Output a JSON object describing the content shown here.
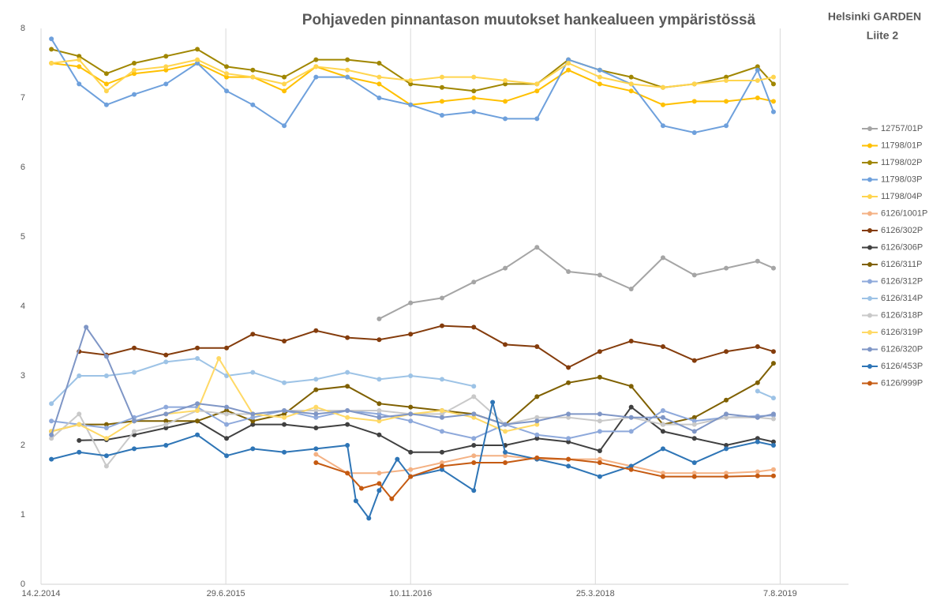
{
  "chart_data": {
    "type": "line",
    "title": "Pohjaveden pinnantason muutokset hankealueen ympäristössä",
    "side_title": "Helsinki GARDEN",
    "side_subtitle": "Liite 2",
    "xlim": [
      "2014-02-14",
      "2020-02-08"
    ],
    "xticks": [
      {
        "value": "2014-02-14",
        "label": "14.2.2014"
      },
      {
        "value": "2015-06-29",
        "label": "29.6.2015"
      },
      {
        "value": "2016-11-10",
        "label": "10.11.2016"
      },
      {
        "value": "2018-03-25",
        "label": "25.3.2018"
      },
      {
        "value": "2019-08-07",
        "label": "7.8.2019"
      }
    ],
    "ylim": [
      0,
      8
    ],
    "yticks": [
      0,
      1,
      2,
      3,
      4,
      5,
      6,
      7,
      8
    ],
    "grid": "x",
    "legend": "right",
    "series": [
      {
        "name": "12757/01P",
        "color": "#a5a5a5",
        "x": [
          "2016-08-17",
          "2016-11-10",
          "2017-02-03",
          "2017-04-30",
          "2017-07-24",
          "2017-10-18",
          "2018-01-11",
          "2018-04-06",
          "2018-06-30",
          "2018-09-24",
          "2018-12-18",
          "2019-03-14",
          "2019-06-07",
          "2019-07-20"
        ],
        "values": [
          3.82,
          4.05,
          4.12,
          4.35,
          4.55,
          4.85,
          4.5,
          4.45,
          4.25,
          4.7,
          4.45,
          4.55,
          4.65,
          4.55
        ]
      },
      {
        "name": "11798/01P",
        "color": "#ffc000",
        "x": [
          "2014-03-14",
          "2014-05-28",
          "2014-08-10",
          "2014-10-24",
          "2015-01-18",
          "2015-04-13",
          "2015-07-01",
          "2015-09-10",
          "2015-12-04",
          "2016-02-28",
          "2016-05-23",
          "2016-08-17",
          "2016-11-10",
          "2017-02-03",
          "2017-04-30",
          "2017-07-24",
          "2017-10-18",
          "2018-01-11",
          "2018-04-06",
          "2018-06-30",
          "2018-09-24",
          "2018-12-18",
          "2019-03-14",
          "2019-06-07",
          "2019-07-20"
        ],
        "values": [
          7.5,
          7.45,
          7.2,
          7.35,
          7.4,
          7.5,
          7.3,
          7.3,
          7.1,
          7.45,
          7.3,
          7.2,
          6.9,
          6.95,
          7.0,
          6.95,
          7.1,
          7.4,
          7.2,
          7.1,
          6.9,
          6.95,
          6.95,
          7.0,
          6.95
        ]
      },
      {
        "name": "11798/02P",
        "color": "#a08600",
        "x": [
          "2014-03-14",
          "2014-05-28",
          "2014-08-10",
          "2014-10-24",
          "2015-01-18",
          "2015-04-13",
          "2015-07-01",
          "2015-09-10",
          "2015-12-04",
          "2016-02-28",
          "2016-05-23",
          "2016-08-17",
          "2016-11-10",
          "2017-02-03",
          "2017-04-30",
          "2017-07-24",
          "2017-10-18",
          "2018-01-11",
          "2018-04-06",
          "2018-06-30",
          "2018-09-24",
          "2018-12-18",
          "2019-03-14",
          "2019-06-07",
          "2019-07-20"
        ],
        "values": [
          7.7,
          7.6,
          7.35,
          7.5,
          7.6,
          7.7,
          7.45,
          7.4,
          7.3,
          7.55,
          7.55,
          7.5,
          7.2,
          7.15,
          7.1,
          7.2,
          7.2,
          7.55,
          7.4,
          7.3,
          7.15,
          7.2,
          7.3,
          7.45,
          7.2
        ]
      },
      {
        "name": "11798/03P",
        "color": "#6ea0dc",
        "x": [
          "2014-03-14",
          "2014-05-28",
          "2014-08-10",
          "2014-10-24",
          "2015-01-18",
          "2015-04-13",
          "2015-07-01",
          "2015-09-10",
          "2015-12-04",
          "2016-02-28",
          "2016-05-23",
          "2016-08-17",
          "2016-11-10",
          "2017-02-03",
          "2017-04-30",
          "2017-07-24",
          "2017-10-18",
          "2018-01-11",
          "2018-04-06",
          "2018-06-30",
          "2018-09-24",
          "2018-12-18",
          "2019-03-14",
          "2019-06-07",
          "2019-07-20"
        ],
        "values": [
          7.85,
          7.2,
          6.9,
          7.05,
          7.2,
          7.5,
          7.1,
          6.9,
          6.6,
          7.3,
          7.3,
          7.0,
          6.9,
          6.75,
          6.8,
          6.7,
          6.7,
          7.55,
          7.4,
          7.2,
          6.6,
          6.5,
          6.6,
          7.4,
          6.8
        ]
      },
      {
        "name": "11798/04P",
        "color": "#ffd54f",
        "x": [
          "2014-03-14",
          "2014-05-28",
          "2014-08-10",
          "2014-10-24",
          "2015-01-18",
          "2015-04-13",
          "2015-07-01",
          "2015-09-10",
          "2015-12-04",
          "2016-02-28",
          "2016-05-23",
          "2016-08-17",
          "2016-11-10",
          "2017-02-03",
          "2017-04-30",
          "2017-07-24",
          "2017-10-18",
          "2018-01-11",
          "2018-04-06",
          "2018-06-30",
          "2018-09-24",
          "2018-12-18",
          "2019-03-14",
          "2019-06-07",
          "2019-07-20"
        ],
        "values": [
          7.5,
          7.55,
          7.1,
          7.4,
          7.45,
          7.55,
          7.35,
          7.3,
          7.2,
          7.45,
          7.4,
          7.3,
          7.25,
          7.3,
          7.3,
          7.25,
          7.2,
          7.5,
          7.3,
          7.2,
          7.15,
          7.2,
          7.25,
          7.25,
          7.3
        ]
      },
      {
        "name": "6126/1001P",
        "color": "#f4b183",
        "x": [
          "2016-02-28",
          "2016-05-23",
          "2016-08-17",
          "2016-11-10",
          "2017-02-03",
          "2017-04-30",
          "2017-07-24",
          "2017-10-18",
          "2018-01-11",
          "2018-04-06",
          "2018-06-30",
          "2018-09-24",
          "2018-12-18",
          "2019-03-14",
          "2019-06-07",
          "2019-07-20"
        ],
        "values": [
          1.87,
          1.6,
          1.6,
          1.65,
          1.75,
          1.85,
          1.85,
          1.8,
          1.8,
          1.8,
          1.7,
          1.6,
          1.6,
          1.6,
          1.62,
          1.65
        ]
      },
      {
        "name": "6126/302P",
        "color": "#843c0c",
        "x": [
          "2014-05-28",
          "2014-08-10",
          "2014-10-24",
          "2015-01-18",
          "2015-04-13",
          "2015-07-01",
          "2015-09-10",
          "2015-12-04",
          "2016-02-28",
          "2016-05-23",
          "2016-08-17",
          "2016-11-10",
          "2017-02-03",
          "2017-04-30",
          "2017-07-24",
          "2017-10-18",
          "2018-01-11",
          "2018-04-06",
          "2018-06-30",
          "2018-09-24",
          "2018-12-18",
          "2019-03-14",
          "2019-06-07",
          "2019-07-20"
        ],
        "values": [
          3.35,
          3.3,
          3.4,
          3.3,
          3.4,
          3.4,
          3.6,
          3.5,
          3.65,
          3.55,
          3.52,
          3.6,
          3.72,
          3.7,
          3.45,
          3.42,
          3.12,
          3.35,
          3.5,
          3.42,
          3.22,
          3.35,
          3.42,
          3.35
        ]
      },
      {
        "name": "6126/306P",
        "color": "#404040",
        "x": [
          "2014-05-28",
          "2014-08-10",
          "2014-10-24",
          "2015-01-18",
          "2015-04-13",
          "2015-07-01",
          "2015-09-10",
          "2015-12-04",
          "2016-02-28",
          "2016-05-23",
          "2016-08-17",
          "2016-11-10",
          "2017-02-03",
          "2017-04-30",
          "2017-07-24",
          "2017-10-18",
          "2018-01-11",
          "2018-04-06",
          "2018-06-30",
          "2018-09-24",
          "2018-12-18",
          "2019-03-14",
          "2019-06-07",
          "2019-07-20"
        ],
        "values": [
          2.07,
          2.08,
          2.15,
          2.25,
          2.35,
          2.1,
          2.3,
          2.3,
          2.25,
          2.3,
          2.15,
          1.9,
          1.9,
          2.0,
          2.0,
          2.1,
          2.05,
          1.92,
          2.55,
          2.2,
          2.1,
          2.0,
          2.1,
          2.05
        ]
      },
      {
        "name": "6126/311P",
        "color": "#7f6000",
        "x": [
          "2014-03-14",
          "2014-05-28",
          "2014-08-10",
          "2014-10-24",
          "2015-01-18",
          "2015-04-13",
          "2015-07-01",
          "2015-09-10",
          "2015-12-04",
          "2016-02-28",
          "2016-05-23",
          "2016-08-17",
          "2016-11-10",
          "2017-02-03",
          "2017-04-30",
          "2017-07-24",
          "2017-10-18",
          "2018-01-11",
          "2018-04-06",
          "2018-06-30",
          "2018-09-24",
          "2018-12-18",
          "2019-03-14",
          "2019-06-07",
          "2019-07-20"
        ],
        "values": [
          2.2,
          2.3,
          2.3,
          2.35,
          2.35,
          2.35,
          2.5,
          2.35,
          2.45,
          2.8,
          2.85,
          2.6,
          2.55,
          2.5,
          2.45,
          2.3,
          2.7,
          2.9,
          2.98,
          2.85,
          2.3,
          2.4,
          2.65,
          2.9,
          3.18
        ]
      },
      {
        "name": "6126/312P",
        "color": "#8ea9db",
        "x": [
          "2014-03-14",
          "2014-05-28",
          "2014-08-10",
          "2014-10-24",
          "2015-01-18",
          "2015-04-13",
          "2015-07-01",
          "2015-09-10",
          "2015-12-04",
          "2016-02-28",
          "2016-05-23",
          "2016-08-17",
          "2016-11-10",
          "2017-02-03",
          "2017-04-30",
          "2017-07-24",
          "2017-10-18",
          "2018-01-11",
          "2018-04-06",
          "2018-06-30",
          "2018-09-24",
          "2018-12-18",
          "2019-03-14",
          "2019-06-07",
          "2019-07-20"
        ],
        "values": [
          2.35,
          2.3,
          2.25,
          2.4,
          2.55,
          2.55,
          2.3,
          2.4,
          2.5,
          2.4,
          2.5,
          2.45,
          2.35,
          2.2,
          2.1,
          2.3,
          2.15,
          2.1,
          2.2,
          2.2,
          2.5,
          2.35,
          2.4,
          2.42,
          2.43
        ]
      },
      {
        "name": "6126/314P",
        "color": "#9dc3e6",
        "x": [
          "2014-03-14",
          "2014-05-28",
          "2014-08-10",
          "2014-10-24",
          "2015-01-18",
          "2015-04-13",
          "2015-07-01",
          "2015-09-10",
          "2015-12-04",
          "2016-02-28",
          "2016-05-23",
          "2016-08-17",
          "2016-11-10",
          "2017-02-03",
          "2017-04-30",
          "2017-10-18",
          "2019-06-07",
          "2019-07-20"
        ],
        "values": [
          2.6,
          3.0,
          3.0,
          3.05,
          3.2,
          3.25,
          3.0,
          3.05,
          2.9,
          2.95,
          3.05,
          2.95,
          3.0,
          2.95,
          2.85,
          null,
          2.78,
          2.68
        ]
      },
      {
        "name": "6126/318P",
        "color": "#c9c9c9",
        "x": [
          "2014-03-14",
          "2014-05-28",
          "2014-08-10",
          "2014-10-24",
          "2015-01-18",
          "2015-04-13",
          "2015-07-01",
          "2015-09-10",
          "2015-12-04",
          "2016-02-28",
          "2016-05-23",
          "2016-08-17",
          "2016-11-10",
          "2017-02-03",
          "2017-04-30",
          "2017-07-24",
          "2017-10-18",
          "2018-01-11",
          "2018-04-06",
          "2018-06-30",
          "2018-09-24",
          "2018-12-18",
          "2019-03-14",
          "2019-06-07",
          "2019-07-20"
        ],
        "values": [
          2.1,
          2.45,
          1.7,
          2.2,
          2.3,
          2.5,
          2.45,
          2.45,
          2.5,
          2.5,
          2.5,
          2.5,
          2.45,
          2.45,
          2.7,
          2.3,
          2.4,
          2.4,
          2.35,
          2.4,
          2.3,
          2.3,
          2.4,
          2.4,
          2.38
        ]
      },
      {
        "name": "6126/319P",
        "color": "#ffd966",
        "x": [
          "2014-03-14",
          "2014-05-28",
          "2014-08-10",
          "2014-10-24",
          "2015-01-18",
          "2015-04-13",
          "2015-06-10",
          "2015-09-10",
          "2015-12-04",
          "2016-02-28",
          "2016-05-23",
          "2016-08-17",
          "2016-11-10",
          "2017-02-03",
          "2017-04-30",
          "2017-07-24",
          "2017-10-18"
        ],
        "values": [
          2.2,
          2.3,
          2.1,
          2.35,
          2.45,
          2.5,
          3.25,
          2.45,
          2.4,
          2.55,
          2.4,
          2.35,
          2.45,
          2.5,
          2.4,
          2.2,
          2.3
        ]
      },
      {
        "name": "6126/320P",
        "color": "#7f96c6",
        "x": [
          "2014-03-14",
          "2014-06-16",
          "2014-08-10",
          "2014-10-24",
          "2015-01-18",
          "2015-04-13",
          "2015-07-01",
          "2015-09-10",
          "2015-12-04",
          "2016-02-28",
          "2016-05-23",
          "2016-08-17",
          "2016-11-10",
          "2017-02-03",
          "2017-04-30",
          "2017-07-24",
          "2017-10-18",
          "2018-01-11",
          "2018-04-06",
          "2018-06-30",
          "2018-09-24",
          "2018-12-18",
          "2019-03-14",
          "2019-06-07",
          "2019-07-20"
        ],
        "values": [
          2.15,
          3.7,
          3.28,
          2.35,
          2.45,
          2.6,
          2.55,
          2.45,
          2.5,
          2.45,
          2.5,
          2.4,
          2.45,
          2.4,
          2.45,
          2.3,
          2.35,
          2.45,
          2.45,
          2.4,
          2.4,
          2.2,
          2.45,
          2.4,
          2.45
        ]
      },
      {
        "name": "6126/453P",
        "color": "#2e75b6",
        "x": [
          "2014-03-14",
          "2014-05-28",
          "2014-08-10",
          "2014-10-24",
          "2015-01-18",
          "2015-04-13",
          "2015-07-01",
          "2015-09-10",
          "2015-12-04",
          "2016-02-28",
          "2016-05-23",
          "2016-06-15",
          "2016-07-20",
          "2016-08-17",
          "2016-10-05",
          "2016-11-10",
          "2017-02-03",
          "2017-04-30",
          "2017-06-20",
          "2017-07-24",
          "2017-10-18",
          "2018-01-11",
          "2018-04-06",
          "2018-06-30",
          "2018-09-24",
          "2018-12-18",
          "2019-03-14",
          "2019-06-07",
          "2019-07-20"
        ],
        "values": [
          1.8,
          1.9,
          1.85,
          1.95,
          2.0,
          2.15,
          1.85,
          1.95,
          1.9,
          1.95,
          2.0,
          1.2,
          0.95,
          1.35,
          1.8,
          1.55,
          1.65,
          1.35,
          2.62,
          1.9,
          1.8,
          1.7,
          1.55,
          1.7,
          1.95,
          1.75,
          1.95,
          2.05,
          2.0
        ]
      },
      {
        "name": "6126/999P",
        "color": "#c55a11",
        "x": [
          "2016-02-28",
          "2016-05-23",
          "2016-06-30",
          "2016-08-17",
          "2016-09-20",
          "2016-11-10",
          "2017-02-03",
          "2017-04-30",
          "2017-07-24",
          "2017-10-18",
          "2018-01-11",
          "2018-04-06",
          "2018-06-30",
          "2018-09-24",
          "2018-12-18",
          "2019-03-14",
          "2019-06-07",
          "2019-07-20"
        ],
        "values": [
          1.75,
          1.6,
          1.38,
          1.45,
          1.23,
          1.55,
          1.7,
          1.75,
          1.75,
          1.82,
          1.8,
          1.75,
          1.65,
          1.55,
          1.55,
          1.55,
          1.56,
          1.56
        ]
      }
    ]
  }
}
